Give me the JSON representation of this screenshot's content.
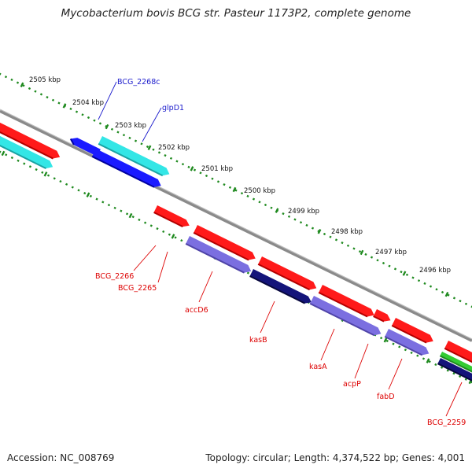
{
  "title": "Mycobacterium bovis BCG str. Pasteur 1173P2, complete genome",
  "footer": {
    "accession": "Accession: NC_008769",
    "summary": "Topology: circular; Length: 4,374,522 bp; Genes: 4,001"
  },
  "scale_labels": [
    "2505 kbp",
    "2504 kbp",
    "2503 kbp",
    "2502 kbp",
    "2501 kbp",
    "2500 kbp",
    "2499 kbp",
    "2498 kbp",
    "2497 kbp",
    "2496 kbp"
  ],
  "gene_labels_top": [
    "BCG_2268c",
    "glpD1"
  ],
  "gene_labels_bottom": [
    "BCG_2266",
    "BCG_2265",
    "accD6",
    "kasB",
    "kasA",
    "acpP",
    "fabD",
    "BCG_2259"
  ],
  "colors": {
    "forward": "#ff1a1a",
    "forward_cyan": "#33e6e6",
    "reverse_blue": "#1a1aff",
    "cds_purple": "#7b6fe0",
    "cds_navy": "#14147a",
    "rna_green": "#33cc33",
    "backbone": "#8a8a8a",
    "ticks": "#1f8a1f",
    "label_top": "#1a1acc",
    "label_bottom": "#dd0000"
  }
}
